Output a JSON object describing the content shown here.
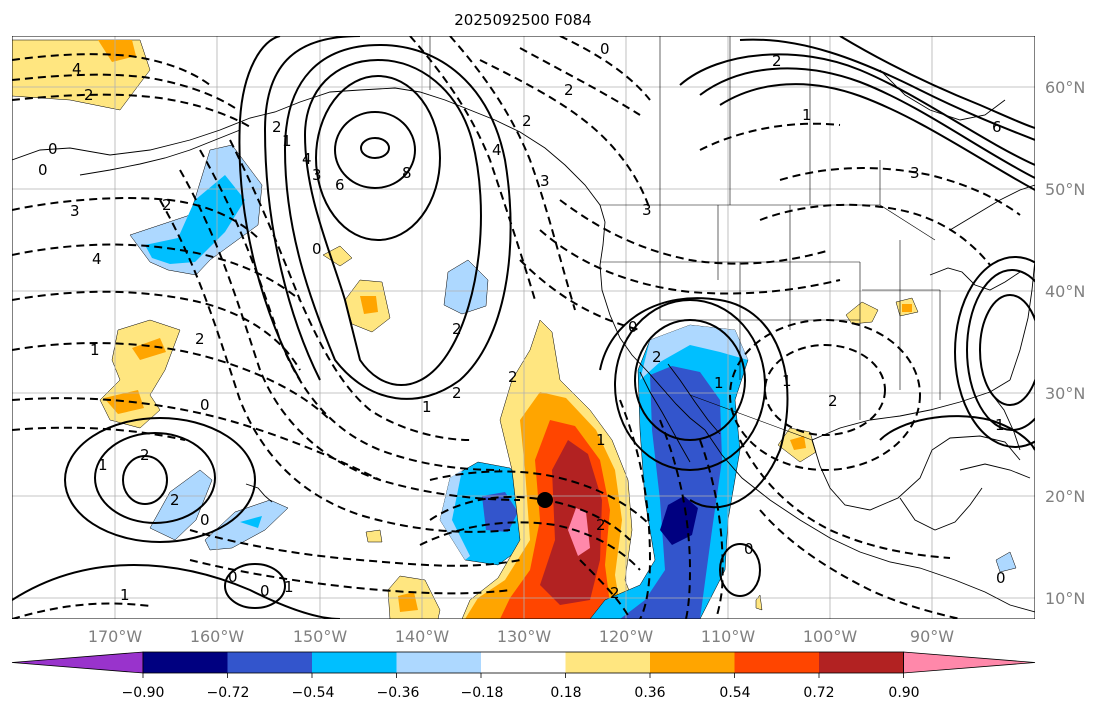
{
  "title": "2025092500 F084",
  "lat_labels": [
    "60°N",
    "50°N",
    "40°N",
    "30°N",
    "20°N",
    "10°N"
  ],
  "lon_labels": [
    "170°W",
    "160°W",
    "150°W",
    "140°W",
    "130°W",
    "120°W",
    "110°W",
    "100°W",
    "90°W"
  ],
  "colorbar": {
    "colors": [
      "#9933cc",
      "#000080",
      "#3355cc",
      "#00bfff",
      "#add8ff",
      "#ffffff",
      "#ffe680",
      "#ffa500",
      "#ff4500",
      "#b22222",
      "#ff88aa"
    ],
    "tick_labels": [
      "−0.90",
      "−0.72",
      "−0.54",
      "−0.36",
      "−0.18",
      "0.18",
      "0.36",
      "0.54",
      "0.72",
      "0.90"
    ]
  },
  "contour_labels": [
    "4",
    "2",
    "0",
    "0",
    "3",
    "2",
    "4",
    "2",
    "1",
    "0",
    "2",
    "1",
    "0",
    "0",
    "1",
    "2",
    "1",
    "2",
    "0",
    "0",
    "1",
    "4",
    "3",
    "6",
    "8",
    "2",
    "2",
    "2",
    "1",
    "2",
    "3",
    "4",
    "0",
    "2",
    "3",
    "2",
    "1",
    "1",
    "2",
    "1",
    "0",
    "0",
    "2",
    "1",
    "2",
    "0",
    "3",
    "6",
    "2",
    "1"
  ],
  "marker": {
    "name": "storm-center",
    "lat": 19.5,
    "lon": -128.2
  }
}
